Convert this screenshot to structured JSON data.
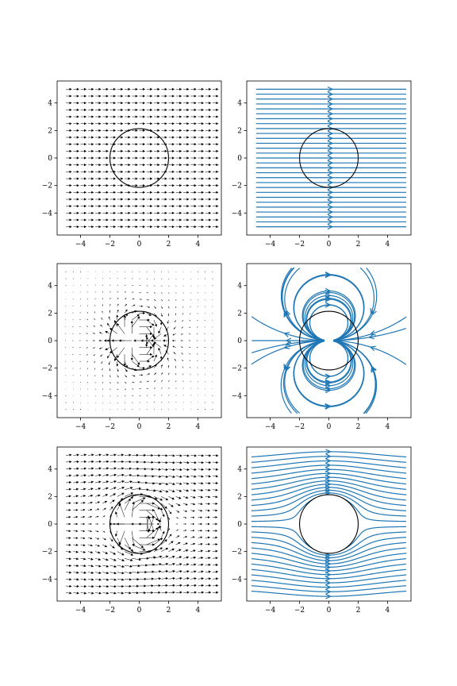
{
  "chart_data": [
    {
      "panel": "top-left",
      "type": "quiver",
      "field": "uniform flow (x-direction)",
      "xlim": [
        -5.6,
        5.6
      ],
      "ylim": [
        -5.6,
        5.6
      ],
      "xticks": [
        -4,
        -2,
        0,
        2,
        4
      ],
      "yticks": [
        -4,
        -2,
        0,
        2,
        4
      ],
      "xtick_labels": [
        "−4",
        "−2",
        "0",
        "2",
        "4"
      ],
      "ytick_labels": [
        "−4",
        "−2",
        "0",
        "2",
        "4"
      ],
      "circle": {
        "cx": 0,
        "cy": 0,
        "r": 2
      },
      "arrow_color": "#000000"
    },
    {
      "panel": "top-right",
      "type": "streamplot",
      "field": "uniform flow (x-direction)",
      "xlim": [
        -5.6,
        5.6
      ],
      "ylim": [
        -5.6,
        5.6
      ],
      "xticks": [
        -4,
        -2,
        0,
        2,
        4
      ],
      "yticks": [
        -4,
        -2,
        0,
        2,
        4
      ],
      "xtick_labels": [
        "−4",
        "−2",
        "0",
        "2",
        "4"
      ],
      "ytick_labels": [
        "−4",
        "−2",
        "0",
        "2",
        "4"
      ],
      "circle": {
        "cx": 0,
        "cy": 0,
        "r": 2
      },
      "line_color": "#1f77b4"
    },
    {
      "panel": "middle-left",
      "type": "quiver",
      "field": "dipole perturbation",
      "xlim": [
        -5.6,
        5.6
      ],
      "ylim": [
        -5.6,
        5.6
      ],
      "xticks": [
        -4,
        -2,
        0,
        2,
        4
      ],
      "yticks": [
        -4,
        -2,
        0,
        2,
        4
      ],
      "xtick_labels": [
        "−4",
        "−2",
        "0",
        "2",
        "4"
      ],
      "ytick_labels": [
        "−4",
        "−2",
        "0",
        "2",
        "4"
      ],
      "circle": {
        "cx": 0,
        "cy": 0,
        "r": 2
      },
      "arrow_color": "#000000"
    },
    {
      "panel": "middle-right",
      "type": "streamplot",
      "field": "dipole perturbation",
      "xlim": [
        -5.6,
        5.6
      ],
      "ylim": [
        -5.6,
        5.6
      ],
      "xticks": [
        -4,
        -2,
        0,
        2,
        4
      ],
      "yticks": [
        -4,
        -2,
        0,
        2,
        4
      ],
      "xtick_labels": [
        "−4",
        "−2",
        "0",
        "2",
        "4"
      ],
      "ytick_labels": [
        "−4",
        "−2",
        "0",
        "2",
        "4"
      ],
      "circle": {
        "cx": 0,
        "cy": 0,
        "r": 2
      },
      "line_color": "#1f77b4"
    },
    {
      "panel": "bottom-left",
      "type": "quiver",
      "field": "flow around cylinder",
      "xlim": [
        -5.6,
        5.6
      ],
      "ylim": [
        -5.6,
        5.6
      ],
      "xticks": [
        -4,
        -2,
        0,
        2,
        4
      ],
      "yticks": [
        -4,
        -2,
        0,
        2,
        4
      ],
      "xtick_labels": [
        "−4",
        "−2",
        "0",
        "2",
        "4"
      ],
      "ytick_labels": [
        "−4",
        "−2",
        "0",
        "2",
        "4"
      ],
      "circle": {
        "cx": 0,
        "cy": 0,
        "r": 2
      },
      "arrow_color": "#000000"
    },
    {
      "panel": "bottom-right",
      "type": "streamplot",
      "field": "flow around cylinder",
      "xlim": [
        -5.6,
        5.6
      ],
      "ylim": [
        -5.6,
        5.6
      ],
      "xticks": [
        -4,
        -2,
        0,
        2,
        4
      ],
      "yticks": [
        -4,
        -2,
        0,
        2,
        4
      ],
      "xtick_labels": [
        "−4",
        "−2",
        "0",
        "2",
        "4"
      ],
      "ytick_labels": [
        "−4",
        "−2",
        "0",
        "2",
        "4"
      ],
      "circle": {
        "cx": 0,
        "cy": 0,
        "r": 2
      },
      "line_color": "#1f77b4"
    }
  ]
}
